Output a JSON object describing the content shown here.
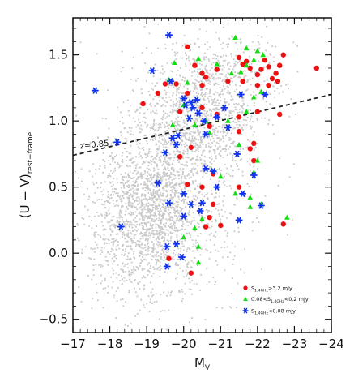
{
  "chart_data": {
    "type": "scatter",
    "title": "",
    "xlabel": "M",
    "xlabel_sub": "V",
    "ylabel": "(U − V)",
    "ylabel_sub": "rest−frame",
    "xlim": [
      -17,
      -24
    ],
    "ylim": [
      -0.6,
      1.78
    ],
    "xticks": [
      -17,
      -18,
      -19,
      -20,
      -21,
      -22,
      -23,
      -24
    ],
    "xtick_labels": [
      "−17",
      "−18",
      "−19",
      "−20",
      "−21",
      "−22",
      "−23",
      "−24"
    ],
    "yticks": [
      -0.5,
      0.0,
      0.5,
      1.0,
      1.5
    ],
    "ytick_labels": [
      "−0.5",
      "0.0",
      "0.5",
      "1.0",
      "1.5"
    ],
    "grid": false,
    "legend_position": "bottom-right",
    "colors": {
      "background_points": "#c8c8c8",
      "red": "#ee1111",
      "green": "#11dd11",
      "blue": "#1133ee",
      "dashed_line": "#222222"
    },
    "annotation": {
      "text": "z=0.85",
      "label_x": -17.2,
      "label_y": 0.79
    },
    "dashed_line": {
      "x": [
        -17.0,
        -24.0
      ],
      "y": [
        0.74,
        1.2
      ]
    },
    "legend": [
      {
        "marker": "circle",
        "color": "red",
        "main": "S",
        "sub": "1.4GHz",
        "tail": ">3.2 mJy"
      },
      {
        "marker": "triangle",
        "color": "green",
        "main": "0.08<S",
        "sub": "1.4GHz",
        "tail": "<0.2 mJy"
      },
      {
        "marker": "star",
        "color": "blue",
        "main": "S",
        "sub": "1.4GHz",
        "tail": "<0.08 mJy"
      }
    ],
    "series": [
      {
        "marker": "circle",
        "color": "red",
        "points": [
          [
            -20.1,
            1.56
          ],
          [
            -20.3,
            1.42
          ],
          [
            -20.5,
            1.36
          ],
          [
            -20.6,
            1.33
          ],
          [
            -20.9,
            1.39
          ],
          [
            -21.5,
            1.48
          ],
          [
            -21.6,
            1.43
          ],
          [
            -21.7,
            1.45
          ],
          [
            -21.8,
            1.4
          ],
          [
            -22.0,
            1.35
          ],
          [
            -22.1,
            1.39
          ],
          [
            -22.2,
            1.46
          ],
          [
            -22.3,
            1.41
          ],
          [
            -22.4,
            1.32
          ],
          [
            -22.5,
            1.36
          ],
          [
            -22.6,
            1.42
          ],
          [
            -22.7,
            1.5
          ],
          [
            -22.55,
            1.3
          ],
          [
            -22.3,
            1.27
          ],
          [
            -22.0,
            1.27
          ],
          [
            -21.6,
            1.3
          ],
          [
            -21.2,
            1.3
          ],
          [
            -20.5,
            1.27
          ],
          [
            -20.1,
            1.21
          ],
          [
            -19.8,
            1.28
          ],
          [
            -19.5,
            1.28
          ],
          [
            -19.3,
            1.21
          ],
          [
            -18.9,
            1.13
          ],
          [
            -19.9,
            1.07
          ],
          [
            -20.5,
            1.1
          ],
          [
            -20.9,
            1.05
          ],
          [
            -21.5,
            1.03
          ],
          [
            -22.0,
            1.07
          ],
          [
            -22.6,
            1.05
          ],
          [
            -23.6,
            1.4
          ],
          [
            -20.7,
            0.96
          ],
          [
            -21.5,
            0.92
          ],
          [
            -21.9,
            0.83
          ],
          [
            -21.8,
            0.79
          ],
          [
            -20.2,
            0.8
          ],
          [
            -19.9,
            0.73
          ],
          [
            -20.5,
            0.5
          ],
          [
            -20.8,
            0.6
          ],
          [
            -21.9,
            0.7
          ],
          [
            -21.5,
            0.5
          ],
          [
            -20.1,
            0.52
          ],
          [
            -20.8,
            0.37
          ],
          [
            -20.7,
            0.27
          ],
          [
            -20.6,
            0.2
          ],
          [
            -21.0,
            0.21
          ],
          [
            -22.7,
            0.22
          ],
          [
            -19.6,
            -0.04
          ],
          [
            -20.2,
            -0.15
          ]
        ]
      },
      {
        "marker": "triangle",
        "color": "green",
        "points": [
          [
            -21.4,
            1.63
          ],
          [
            -21.7,
            1.55
          ],
          [
            -22.0,
            1.53
          ],
          [
            -22.15,
            1.5
          ],
          [
            -21.7,
            1.42
          ],
          [
            -20.9,
            1.43
          ],
          [
            -20.4,
            1.47
          ],
          [
            -19.75,
            1.44
          ],
          [
            -19.6,
            1.31
          ],
          [
            -20.1,
            1.29
          ],
          [
            -21.3,
            1.36
          ],
          [
            -21.55,
            1.37
          ],
          [
            -21.9,
            1.46
          ],
          [
            -20.0,
            1.12
          ],
          [
            -21.9,
            1.18
          ],
          [
            -22.1,
            1.22
          ],
          [
            -20.6,
            1.0
          ],
          [
            -20.3,
            0.97
          ],
          [
            -21.2,
            1.0
          ],
          [
            -21.7,
            1.07
          ],
          [
            -19.7,
            0.97
          ],
          [
            -20.7,
            0.91
          ],
          [
            -21.5,
            0.82
          ],
          [
            -22.0,
            0.7
          ],
          [
            -21.9,
            0.61
          ],
          [
            -21.0,
            0.58
          ],
          [
            -21.4,
            0.45
          ],
          [
            -21.8,
            0.42
          ],
          [
            -22.1,
            0.37
          ],
          [
            -22.8,
            0.27
          ],
          [
            -20.5,
            0.26
          ],
          [
            -20.3,
            0.19
          ],
          [
            -20.0,
            0.12
          ],
          [
            -21.8,
            0.35
          ],
          [
            -20.4,
            0.05
          ],
          [
            -20.4,
            -0.07
          ]
        ]
      },
      {
        "marker": "star",
        "color": "blue",
        "points": [
          [
            -19.6,
            1.65
          ],
          [
            -19.15,
            1.38
          ],
          [
            -19.65,
            1.3
          ],
          [
            -17.6,
            1.23
          ],
          [
            -20.0,
            1.17
          ],
          [
            -20.05,
            1.12
          ],
          [
            -20.2,
            1.14
          ],
          [
            -20.35,
            1.16
          ],
          [
            -20.25,
            1.1
          ],
          [
            -20.15,
            1.02
          ],
          [
            -20.4,
            1.06
          ],
          [
            -20.55,
            1.0
          ],
          [
            -20.9,
            1.03
          ],
          [
            -21.1,
            1.1
          ],
          [
            -21.55,
            1.2
          ],
          [
            -22.2,
            1.2
          ],
          [
            -21.2,
            0.95
          ],
          [
            -19.7,
            0.87
          ],
          [
            -19.85,
            0.89
          ],
          [
            -19.8,
            0.82
          ],
          [
            -20.6,
            0.9
          ],
          [
            -19.5,
            0.76
          ],
          [
            -18.2,
            0.84
          ],
          [
            -20.6,
            0.64
          ],
          [
            -20.8,
            0.62
          ],
          [
            -21.45,
            0.75
          ],
          [
            -21.9,
            0.59
          ],
          [
            -20.9,
            0.5
          ],
          [
            -19.3,
            0.53
          ],
          [
            -20.0,
            0.45
          ],
          [
            -19.6,
            0.38
          ],
          [
            -20.2,
            0.37
          ],
          [
            -20.0,
            0.28
          ],
          [
            -20.5,
            0.38
          ],
          [
            -21.6,
            0.45
          ],
          [
            -22.1,
            0.36
          ],
          [
            -21.5,
            0.25
          ],
          [
            -20.45,
            0.32
          ],
          [
            -18.3,
            0.2
          ],
          [
            -19.8,
            0.07
          ],
          [
            -19.95,
            -0.03
          ],
          [
            -19.55,
            -0.1
          ],
          [
            -19.55,
            0.05
          ]
        ]
      }
    ]
  }
}
